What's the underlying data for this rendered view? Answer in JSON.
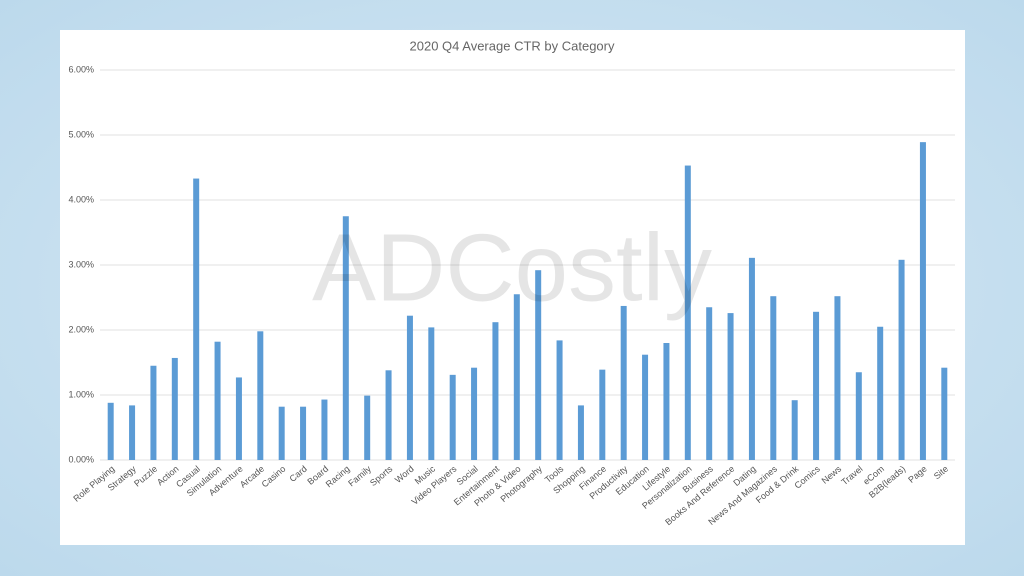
{
  "chart_data": {
    "type": "bar",
    "title": "2020 Q4 Average CTR by Category",
    "watermark": "ADCostly",
    "categories": [
      "Role Playing",
      "Strategy",
      "Puzzle",
      "Action",
      "Casual",
      "Simulation",
      "Adventure",
      "Arcade",
      "Casino",
      "Card",
      "Board",
      "Racing",
      "Family",
      "Sports",
      "Word",
      "Music",
      "Video Players",
      "Social",
      "Entertainment",
      "Photo & Video",
      "Photography",
      "Tools",
      "Shopping",
      "Finance",
      "Productivity",
      "Education",
      "Lifestyle",
      "Personalization",
      "Business",
      "Books And Reference",
      "Dating",
      "News And Magazines",
      "Food & Drink",
      "Comics",
      "News",
      "Travel",
      "eCom",
      "B2B(leads)",
      "Page",
      "Site"
    ],
    "values": [
      0.88,
      0.84,
      1.45,
      1.57,
      4.33,
      1.82,
      1.27,
      1.98,
      0.82,
      0.82,
      0.93,
      3.75,
      0.99,
      1.38,
      2.22,
      2.04,
      1.31,
      1.42,
      2.12,
      2.55,
      2.92,
      1.84,
      0.84,
      1.39,
      2.37,
      1.62,
      1.8,
      4.53,
      2.35,
      2.26,
      3.11,
      2.52,
      0.92,
      2.28,
      2.52,
      1.35,
      2.05,
      3.08,
      4.89,
      1.42
    ],
    "color": "#5b9bd5",
    "ylim": [
      0,
      6
    ],
    "yticks": [
      {
        "value": 0,
        "label": "0.00%"
      },
      {
        "value": 1,
        "label": "1.00%"
      },
      {
        "value": 2,
        "label": "2.00%"
      },
      {
        "value": 3,
        "label": "3.00%"
      },
      {
        "value": 4,
        "label": "4.00%"
      },
      {
        "value": 5,
        "label": "5.00%"
      },
      {
        "value": 6,
        "label": "6.00%"
      }
    ],
    "grid": true
  }
}
